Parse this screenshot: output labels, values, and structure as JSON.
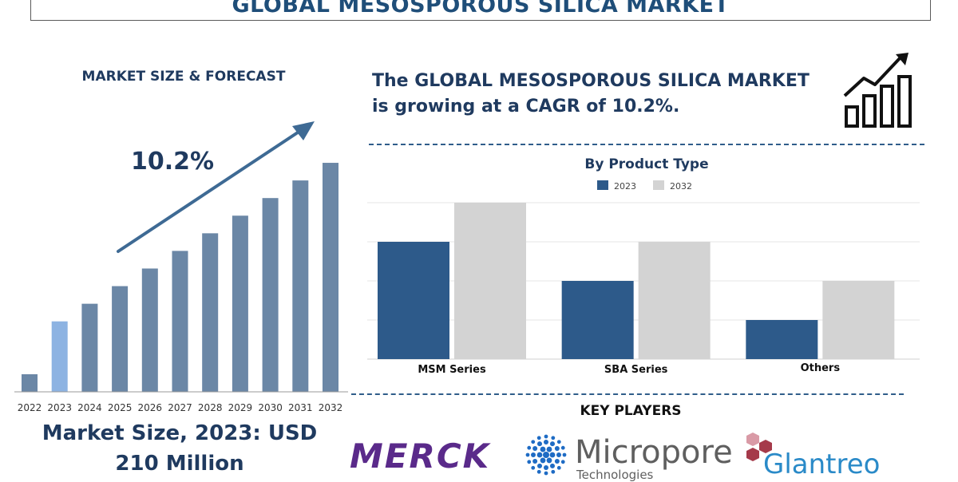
{
  "title": "GLOBAL MESOSPOROUS SILICA MARKET",
  "left_panel": {
    "heading": "MARKET SIZE & FORECAST",
    "cagr_label": "10.2%",
    "market_size_line1": "Market Size, 2023: USD",
    "market_size_line2": "210 Million"
  },
  "headline": "The GLOBAL MESOSPOROUS SILICA MARKET is growing at a CAGR of 10.2%.",
  "key_players": {
    "title": "KEY PLAYERS",
    "logos": [
      "MERCK",
      "Micropore",
      "Technologies",
      "Glantreo"
    ]
  },
  "icons": [
    "growth-chart-icon",
    "trend-arrow-icon"
  ],
  "colors": {
    "navy": "#1f3a5f",
    "bar_forecast": "#6b87a6",
    "bar_2023": "#8db3e2",
    "bar_2023_product": "#2d5a8a",
    "bar_2032_product": "#d3d3d3",
    "merck": "#5a2a8a",
    "glantreo": "#2a8ac8"
  },
  "chart_data": [
    {
      "type": "bar",
      "title": "",
      "categories": [
        "2022",
        "2023",
        "2024",
        "2025",
        "2026",
        "2027",
        "2028",
        "2029",
        "2030",
        "2031",
        "2032"
      ],
      "values": [
        1,
        4,
        5,
        6,
        7,
        8,
        9,
        10,
        11,
        12,
        13
      ],
      "highlight": "2023",
      "ylim": [
        0,
        13.5
      ],
      "grid": false
    },
    {
      "type": "bar",
      "title": "By Product Type",
      "categories": [
        "MSM Series",
        "SBA Series",
        "Others"
      ],
      "series": [
        {
          "name": "2023",
          "values": [
            3,
            2,
            1
          ]
        },
        {
          "name": "2032",
          "values": [
            4,
            3,
            2
          ]
        }
      ],
      "ylim": [
        0,
        4
      ],
      "grid": true,
      "legend": "top-center"
    }
  ]
}
